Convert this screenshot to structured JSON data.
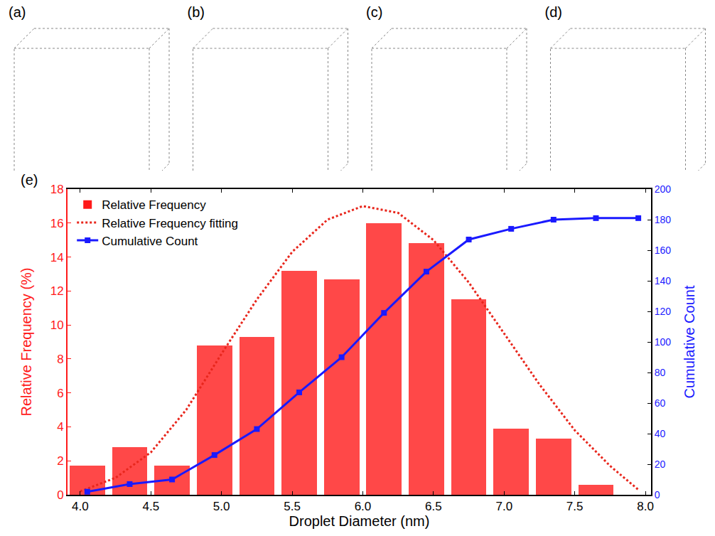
{
  "images": [
    {
      "label": "(a)"
    },
    {
      "label": "(b)"
    },
    {
      "label": "(c)"
    },
    {
      "label": "(d)"
    }
  ],
  "chart_data": {
    "type": "bar",
    "annotations": [
      "(e)"
    ],
    "x_label": "Droplet Diameter (nm)",
    "y_label": "Relative Frequency (%)",
    "y2_label": "Cumulative Count",
    "xlim": [
      3.91,
      8.04
    ],
    "xticks": [
      {
        "value": 4,
        "label": "4.0"
      },
      {
        "value": 4.5,
        "label": "4.5"
      },
      {
        "value": 5,
        "label": "5.0"
      },
      {
        "value": 5.5,
        "label": "5.5"
      },
      {
        "value": 6,
        "label": "6.0"
      },
      {
        "value": 6.5,
        "label": "6.5"
      },
      {
        "value": 7,
        "label": "7.0"
      },
      {
        "value": 7.5,
        "label": "7.5"
      },
      {
        "value": 8,
        "label": "8.0"
      }
    ],
    "ylim": [
      0,
      18
    ],
    "yticks": [
      0,
      2,
      4,
      6,
      8,
      10,
      12,
      14,
      16,
      18
    ],
    "y2lim": [
      0,
      200
    ],
    "y2ticks": [
      0,
      20,
      40,
      60,
      80,
      100,
      120,
      140,
      160,
      180,
      200
    ],
    "grid": false,
    "legend": "upper left",
    "series": [
      {
        "name": "Relative Frequency",
        "type": "bar",
        "color": "#ff1a1a",
        "x": [
          4.05,
          4.35,
          4.65,
          4.95,
          5.25,
          5.55,
          5.85,
          6.15,
          6.45,
          6.75,
          7.05,
          7.35,
          7.65
        ],
        "values": [
          1.7,
          2.8,
          1.7,
          8.8,
          9.3,
          13.2,
          12.7,
          16.0,
          14.8,
          11.5,
          3.9,
          3.3,
          0.6
        ]
      },
      {
        "name": "Relative Frequency fitting",
        "type": "line",
        "line_style": "dot",
        "color": "#e8261c",
        "x": [
          4.0,
          4.25,
          4.5,
          4.75,
          5.0,
          5.25,
          5.5,
          5.75,
          6.0,
          6.25,
          6.5,
          6.75,
          7.0,
          7.25,
          7.5,
          7.75,
          7.95
        ],
        "values": [
          0.2,
          1.0,
          2.5,
          5.0,
          8.3,
          11.5,
          14.3,
          16.2,
          17.0,
          16.6,
          15.0,
          12.5,
          9.5,
          6.5,
          3.8,
          1.7,
          0.3
        ]
      },
      {
        "name": "Cumulative Count",
        "type": "line",
        "line_style": "solid",
        "marker": "square",
        "color": "#1a1aff",
        "axis": "y2",
        "x": [
          4.05,
          4.35,
          4.65,
          4.95,
          5.25,
          5.55,
          5.85,
          6.15,
          6.45,
          6.75,
          7.05,
          7.35,
          7.65,
          7.95
        ],
        "values": [
          2,
          7,
          10,
          26,
          43,
          67,
          90,
          119,
          146,
          167,
          174,
          180,
          181,
          181
        ]
      }
    ]
  }
}
